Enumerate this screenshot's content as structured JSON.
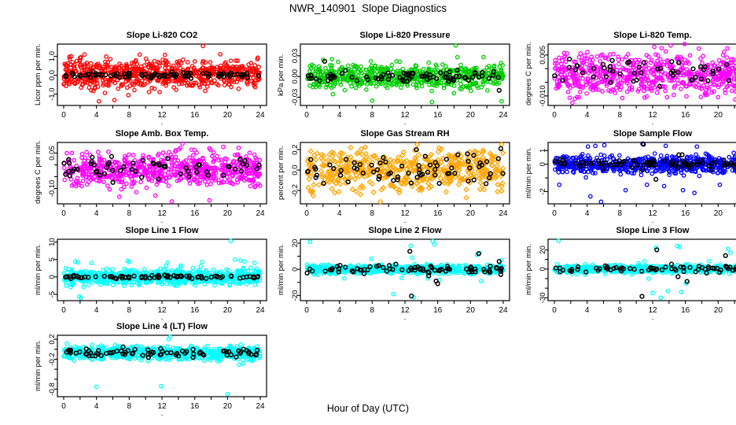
{
  "page": {
    "title": "NWR_140901  Slope Diagnostics",
    "xlabel": "Hour of Day (UTC)",
    "background": "#FFFFFF",
    "axis_color": "#000000"
  },
  "axis": {
    "x_range": [
      0,
      24
    ],
    "x_ticks_labeled": [
      0,
      4,
      8,
      12,
      16,
      20,
      24
    ],
    "x_ticks_minor": [
      2,
      6,
      10,
      14,
      18,
      22
    ],
    "sub_label": "."
  },
  "colors": {
    "co2": "#FF0000",
    "pressure": "#00CD00",
    "temp": "#FF00FF",
    "rh": "#FFA500",
    "sample_flow": "#0000FF",
    "line_flow": "#00FFFF",
    "overlay": "#000000"
  },
  "chart_data": [
    {
      "type": "scatter",
      "title": "Slope Li-820 CO2",
      "ylabel": "Licor ppm per min.",
      "point_color": "#FF0000",
      "point_shape": "circle",
      "overlay_color": "#000000",
      "ylim": [
        -1.6,
        1.65
      ],
      "y_ticks": [
        {
          "v": 1.0,
          "label": "1.0"
        },
        {
          "v": 0.0,
          "label": "0.0"
        },
        {
          "v": -1.0,
          "label": "-1.0"
        }
      ],
      "cloud": {
        "n": 680,
        "center": 0.05,
        "sd": 0.38,
        "clip": [
          -1.45,
          1.5
        ]
      },
      "overlay": {
        "n": 85,
        "center": 0.0,
        "sd": 0.07,
        "clip": [
          -0.3,
          0.3
        ]
      },
      "outliers": [
        [
          17.0,
          1.55
        ],
        [
          2.1,
          0.95
        ],
        [
          4.3,
          -1.38
        ],
        [
          6.2,
          -1.32
        ],
        [
          7.9,
          -1.05
        ]
      ],
      "overlay_outliers": []
    },
    {
      "type": "scatter",
      "title": "Slope Li-820 Pressure",
      "ylabel": "kPa per min.",
      "point_color": "#00CD00",
      "point_shape": "circle",
      "overlay_color": "#000000",
      "ylim": [
        -0.042,
        0.047
      ],
      "y_ticks": [
        {
          "v": 0.03,
          "label": "0.03"
        },
        {
          "v": 0.0,
          "label": "0.00"
        },
        {
          "v": -0.03,
          "label": "-0.03"
        }
      ],
      "cloud": {
        "n": 620,
        "center": 0.0,
        "sd": 0.0085,
        "clip": [
          -0.033,
          0.033
        ]
      },
      "overlay": {
        "n": 80,
        "center": 0.0,
        "sd": 0.004,
        "clip": [
          -0.02,
          0.02
        ]
      },
      "outliers": [
        [
          18.2,
          0.045
        ],
        [
          18.4,
          0.028
        ],
        [
          2.0,
          0.024
        ],
        [
          21.6,
          0.028
        ],
        [
          8.0,
          -0.035
        ],
        [
          15.3,
          -0.037
        ],
        [
          23.8,
          -0.036
        ],
        [
          14.9,
          0.02
        ]
      ],
      "overlay_outliers": [
        [
          2.2,
          0.022
        ],
        [
          23.5,
          -0.02
        ]
      ]
    },
    {
      "type": "scatter",
      "title": "Slope Li-820 Temp.",
      "ylabel": "degrees C per min.",
      "point_color": "#FF00FF",
      "point_shape": "circle",
      "overlay_color": "#000000",
      "ylim": [
        -0.0135,
        0.009
      ],
      "y_ticks": [
        {
          "v": 0.005,
          "label": "0.005"
        },
        {
          "v": 0.0,
          "label": ""
        },
        {
          "v": -0.005,
          "label": ""
        },
        {
          "v": -0.01,
          "label": "-0.010"
        }
      ],
      "cloud": {
        "n": 640,
        "center": -0.002,
        "sd": 0.0035,
        "clip": [
          -0.0115,
          0.0075
        ]
      },
      "overlay": {
        "n": 60,
        "center": -0.001,
        "sd": 0.0028,
        "clip": [
          -0.009,
          0.005
        ]
      },
      "outliers": [
        [
          12.2,
          0.008
        ],
        [
          14.2,
          0.0085
        ],
        [
          15.9,
          0.009
        ],
        [
          13.1,
          0.0075
        ],
        [
          2.2,
          -0.0125
        ],
        [
          3.0,
          -0.0105
        ]
      ],
      "overlay_outliers": []
    },
    {
      "type": "scatter",
      "title": "Slope Amb. Box Temp.",
      "ylabel": "degrees C per min.",
      "point_color": "#FF00FF",
      "point_shape": "circle",
      "overlay_color": "#000000",
      "ylim": [
        -0.165,
        0.095
      ],
      "y_ticks": [
        {
          "v": 0.05,
          "label": "0.05"
        },
        {
          "v": 0.0,
          "label": ""
        },
        {
          "v": -0.05,
          "label": ""
        },
        {
          "v": -0.1,
          "label": "-0.10"
        }
      ],
      "cloud": {
        "n": 640,
        "center": -0.02,
        "sd": 0.035,
        "clip": [
          -0.125,
          0.08
        ]
      },
      "overlay": {
        "n": 60,
        "center": -0.015,
        "sd": 0.025,
        "clip": [
          -0.08,
          0.055
        ]
      },
      "outliers": [
        [
          14.5,
          0.09
        ],
        [
          13.2,
          -0.155
        ],
        [
          17.8,
          -0.15
        ],
        [
          6.8,
          -0.135
        ],
        [
          11.2,
          -0.13
        ]
      ],
      "overlay_outliers": []
    },
    {
      "type": "scatter",
      "title": "Slope Gas Stream RH",
      "ylabel": "percent per min.",
      "point_color": "#FFA500",
      "point_shape": "diamond",
      "overlay_color": "#000000",
      "ylim": [
        -0.33,
        0.27
      ],
      "y_ticks": [
        {
          "v": 0.2,
          "label": "0.2"
        },
        {
          "v": 0.0,
          "label": "0.0"
        },
        {
          "v": -0.2,
          "label": "-0.2"
        }
      ],
      "cloud": {
        "n": 500,
        "center": 0.0,
        "sd": 0.105,
        "clip": [
          -0.27,
          0.23
        ]
      },
      "overlay": {
        "n": 70,
        "center": 0.0,
        "sd": 0.07,
        "clip": [
          -0.15,
          0.2
        ]
      },
      "outliers": [
        [
          9.0,
          -0.31
        ],
        [
          13.5,
          0.25
        ],
        [
          23.8,
          0.25
        ],
        [
          0.8,
          -0.25
        ],
        [
          19.5,
          -0.27
        ]
      ],
      "overlay_outliers": [
        [
          13.4,
          0.2
        ],
        [
          23.7,
          0.21
        ]
      ]
    },
    {
      "type": "scatter",
      "title": "Slope Sample Flow",
      "ylabel": "ml/min per min.",
      "point_color": "#0000FF",
      "point_shape": "circle",
      "overlay_color": "#000000",
      "ylim": [
        -2.9,
        1.6
      ],
      "y_ticks": [
        {
          "v": 1,
          "label": "1"
        },
        {
          "v": 0,
          "label": "0"
        },
        {
          "v": -1,
          "label": ""
        },
        {
          "v": -2,
          "label": "-2"
        }
      ],
      "cloud": {
        "n": 640,
        "center": 0.0,
        "sd": 0.33,
        "clip": [
          -1.2,
          1.2
        ]
      },
      "overlay": {
        "n": 80,
        "center": 0.0,
        "sd": 0.15,
        "clip": [
          -0.6,
          0.6
        ]
      },
      "outliers": [
        [
          0.6,
          -1.5
        ],
        [
          4.4,
          -2.35
        ],
        [
          5.7,
          -2.75
        ],
        [
          4.1,
          1.3
        ],
        [
          5.0,
          1.35
        ],
        [
          6.1,
          1.4
        ],
        [
          8.7,
          -1.9
        ],
        [
          10.9,
          1.45
        ],
        [
          11.3,
          -1.5
        ],
        [
          13.4,
          -1.6
        ],
        [
          13.6,
          1.35
        ],
        [
          15.7,
          -1.9
        ],
        [
          17.1,
          -2.1
        ],
        [
          17.4,
          1.3
        ],
        [
          20.2,
          -1.5
        ],
        [
          22.9,
          -1.3
        ],
        [
          23.6,
          1.35
        ],
        [
          23.8,
          1.3
        ]
      ],
      "overlay_outliers": [
        [
          10.8,
          1.5
        ],
        [
          12.4,
          -1.1
        ],
        [
          15.2,
          0.7
        ],
        [
          15.6,
          0.7
        ]
      ]
    },
    {
      "type": "scatter",
      "title": "Slope Line 1 Flow",
      "ylabel": "ml/min per min.",
      "point_color": "#00FFFF",
      "point_shape": "circle",
      "overlay_color": "#000000",
      "ylim": [
        -6.8,
        10.8
      ],
      "y_ticks": [
        {
          "v": 10,
          "label": "10"
        },
        {
          "v": 5,
          "label": "5"
        },
        {
          "v": 0,
          "label": "0"
        },
        {
          "v": -5,
          "label": "-5"
        }
      ],
      "cloud": {
        "n": 640,
        "center": 0.0,
        "sd": 1.1,
        "clip": [
          -3.5,
          3.8
        ]
      },
      "overlay": {
        "n": 80,
        "center": 0.0,
        "sd": 0.25,
        "clip": [
          -1,
          1
        ]
      },
      "outliers": [
        [
          0.3,
          -2.5
        ],
        [
          1.4,
          4.4
        ],
        [
          1.7,
          4.2
        ],
        [
          1.9,
          -5.6
        ],
        [
          2.1,
          -6.0
        ],
        [
          3.4,
          4.0
        ],
        [
          7.8,
          4.6
        ],
        [
          8.0,
          4.3
        ],
        [
          12.7,
          4.1
        ],
        [
          16.9,
          4.3
        ],
        [
          20.4,
          10.3
        ],
        [
          20.9,
          5.0
        ],
        [
          21.6,
          4.7
        ],
        [
          22.1,
          4.4
        ],
        [
          23.3,
          4.0
        ]
      ],
      "overlay_outliers": []
    },
    {
      "type": "scatter",
      "title": "Slope Line 2 Flow",
      "ylabel": "ml/min per min.",
      "point_color": "#00FFFF",
      "point_shape": "circle",
      "overlay_color": "#000000",
      "ylim": [
        -24,
        23
      ],
      "y_ticks": [
        {
          "v": 20,
          "label": "20"
        },
        {
          "v": 10,
          "label": ""
        },
        {
          "v": 0,
          "label": "0"
        },
        {
          "v": -10,
          "label": ""
        },
        {
          "v": -20,
          "label": "-20"
        }
      ],
      "cloud": {
        "n": 620,
        "center": 0.0,
        "sd": 1.6,
        "clip": [
          -6,
          6
        ]
      },
      "overlay": {
        "n": 75,
        "center": 0.0,
        "sd": 1.8,
        "clip": [
          -5,
          5
        ]
      },
      "outliers": [
        [
          0.4,
          21
        ],
        [
          4.6,
          -7
        ],
        [
          7.9,
          8
        ],
        [
          10.6,
          -19
        ],
        [
          11.6,
          -6.5
        ],
        [
          12.7,
          18
        ],
        [
          13.1,
          -21.5
        ],
        [
          12.9,
          9
        ],
        [
          15.4,
          21.5
        ],
        [
          15.6,
          19
        ],
        [
          14.8,
          -7
        ],
        [
          16.2,
          -8
        ],
        [
          20.8,
          11
        ],
        [
          21.1,
          12.5
        ],
        [
          21.3,
          -9
        ],
        [
          23.8,
          7
        ]
      ],
      "overlay_outliers": [
        [
          3.9,
          -2
        ],
        [
          12.6,
          13.8
        ],
        [
          12.8,
          -20.5
        ],
        [
          14.9,
          -5
        ],
        [
          15.8,
          -9
        ],
        [
          16.0,
          -11
        ],
        [
          21.0,
          12
        ],
        [
          23.5,
          6
        ],
        [
          23.7,
          -4
        ]
      ]
    },
    {
      "type": "scatter",
      "title": "Slope Line 3 Flow",
      "ylabel": "ml/min per min.",
      "point_color": "#00FFFF",
      "point_shape": "circle",
      "overlay_color": "#000000",
      "ylim": [
        -33,
        31
      ],
      "y_ticks": [
        {
          "v": 20,
          "label": "20"
        },
        {
          "v": 10,
          "label": ""
        },
        {
          "v": 0,
          "label": "0"
        },
        {
          "v": -10,
          "label": ""
        },
        {
          "v": -20,
          "label": ""
        },
        {
          "v": -30,
          "label": "-30"
        }
      ],
      "cloud": {
        "n": 620,
        "center": 0.0,
        "sd": 2.0,
        "clip": [
          -7,
          7
        ]
      },
      "overlay": {
        "n": 75,
        "center": 0.0,
        "sd": 1.7,
        "clip": [
          -5,
          5
        ]
      },
      "outliers": [
        [
          0.5,
          29.5
        ],
        [
          11.0,
          8
        ],
        [
          11.5,
          -10
        ],
        [
          12.0,
          -25
        ],
        [
          12.4,
          22.5
        ],
        [
          13.0,
          -30
        ],
        [
          13.9,
          -23
        ],
        [
          15.0,
          24
        ],
        [
          15.3,
          23
        ],
        [
          15.5,
          -24
        ],
        [
          16.1,
          -15
        ],
        [
          18.9,
          8
        ],
        [
          21.2,
          21
        ],
        [
          21.5,
          17
        ],
        [
          23.9,
          8
        ]
      ],
      "overlay_outliers": [
        [
          10.7,
          -28.5
        ],
        [
          12.5,
          20
        ],
        [
          14.3,
          5
        ],
        [
          15.1,
          -8
        ],
        [
          16.2,
          -13
        ],
        [
          20.9,
          14
        ],
        [
          23.8,
          7.5
        ]
      ]
    },
    {
      "type": "scatter",
      "title": "Slope Line 4 (LT) Flow",
      "ylabel": "ml/min per min.",
      "point_color": "#00FFFF",
      "point_shape": "circle",
      "overlay_color": "#000000",
      "ylim": [
        -0.95,
        0.28
      ],
      "y_ticks": [
        {
          "v": 0.2,
          "label": "0.2"
        },
        {
          "v": 0.0,
          "label": ""
        },
        {
          "v": -0.2,
          "label": "-0.2"
        },
        {
          "v": -0.4,
          "label": ""
        },
        {
          "v": -0.6,
          "label": ""
        },
        {
          "v": -0.8,
          "label": "-0.8"
        }
      ],
      "cloud": {
        "n": 640,
        "center": -0.08,
        "sd": 0.065,
        "clip": [
          -0.26,
          0.18
        ]
      },
      "overlay": {
        "n": 80,
        "center": -0.07,
        "sd": 0.05,
        "clip": [
          -0.22,
          0.12
        ]
      },
      "outliers": [
        [
          4.0,
          -0.75
        ],
        [
          11.9,
          -0.74
        ],
        [
          13.0,
          0.25
        ],
        [
          12.8,
          0.2
        ],
        [
          20.0,
          -0.9
        ],
        [
          21.4,
          -0.31
        ],
        [
          21.9,
          -0.29
        ]
      ],
      "overlay_outliers": []
    }
  ]
}
